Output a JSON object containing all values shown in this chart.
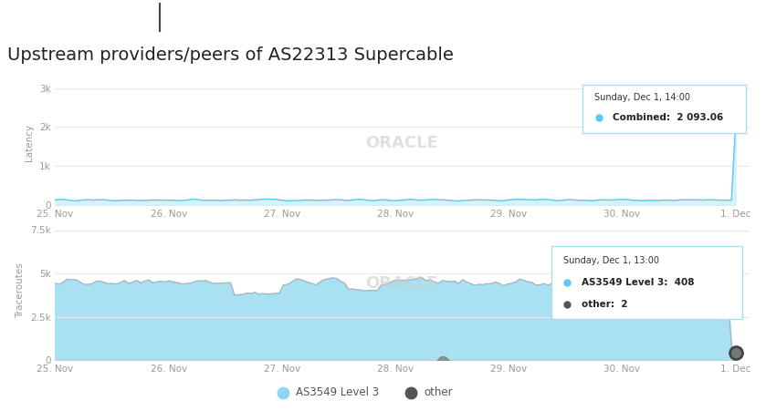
{
  "title": "Upstream providers/peers of AS22313 Supercable",
  "header_bg": "#111111",
  "page_bg": "#ffffff",
  "chart_bg": "#ffffff",
  "oracle_watermark_color": "#cccccc",
  "x_labels": [
    "25. Nov",
    "26. Nov",
    "27. Nov",
    "28. Nov",
    "29. Nov",
    "30. Nov",
    "1. Dec"
  ],
  "top_chart": {
    "ylabel": "Latency",
    "yticks": [
      0,
      1000,
      2000,
      3000
    ],
    "ytick_labels": [
      "0",
      "1k",
      "2k",
      "3k"
    ],
    "ylim": [
      0,
      3200
    ],
    "baseline_value": 120,
    "spike_value": 2093.06,
    "line_color": "#5bc8f5",
    "fill_color": "#b8e8f8",
    "tooltip_title": "Sunday, Dec 1, 14:00",
    "tooltip_label": "Combined:",
    "tooltip_value": "2 093.06",
    "tooltip_dot_color": "#5bc8f5"
  },
  "bottom_chart": {
    "ylabel": "Traceroutes",
    "yticks": [
      0,
      2500,
      5000,
      7500
    ],
    "ytick_labels": [
      "0",
      "2.5k",
      "5k",
      "7.5k"
    ],
    "ylim": [
      0,
      8000
    ],
    "base_value": 4500,
    "area_color": "#8dd8f0",
    "line_color": "#aaaaaa",
    "tooltip_title": "Sunday, Dec 1, 13:00",
    "tooltip_label1": "AS3549 Level 3:",
    "tooltip_value1": "408",
    "tooltip_label2": "other:",
    "tooltip_value2": "2",
    "tooltip_dot_color1": "#5bc8f5",
    "tooltip_dot_color2": "#555555"
  },
  "legend": {
    "items": [
      {
        "label": "AS3549 Level 3",
        "color": "#8dd8f0",
        "marker": "o"
      },
      {
        "label": "other",
        "color": "#555555",
        "marker": "o"
      }
    ]
  },
  "grid_color": "#e8e8e8",
  "tick_color": "#999999",
  "axis_label_color": "#999999",
  "title_color": "#222222",
  "title_fontsize": 14
}
